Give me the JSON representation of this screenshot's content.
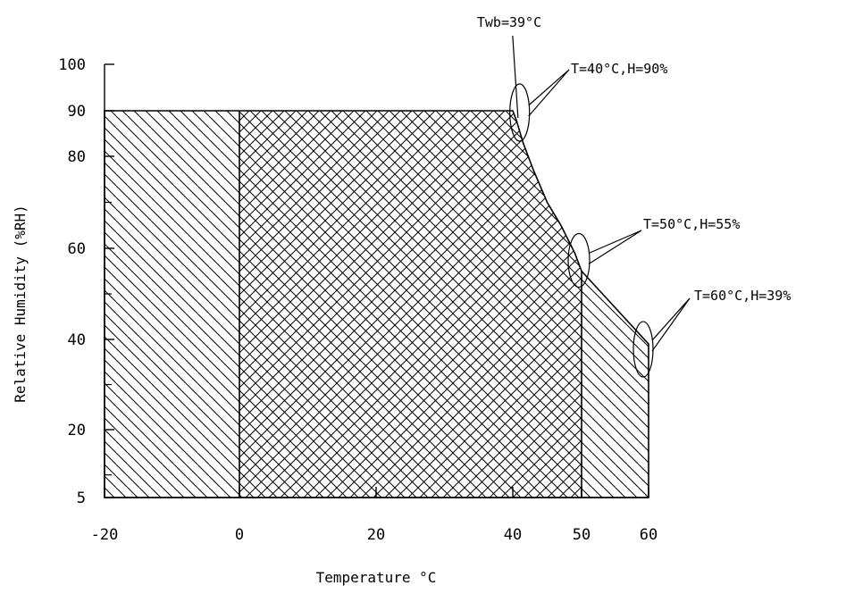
{
  "chart_data": {
    "type": "area",
    "xlabel": "Temperature °C",
    "ylabel": "Relative Humidity (%RH)",
    "xlim": [
      -20,
      60
    ],
    "ylim": [
      5,
      100
    ],
    "x_ticks": [
      -20,
      0,
      20,
      40,
      50,
      60
    ],
    "x_tick_labels": [
      "-20",
      "0",
      "20",
      "40",
      "50",
      "60"
    ],
    "y_ticks": [
      5,
      20,
      40,
      60,
      80,
      90,
      100
    ],
    "y_tick_labels": [
      "5",
      "20",
      "40",
      "60",
      "80",
      "90",
      "100"
    ],
    "y_minor_ticks": [
      10,
      30,
      50,
      70
    ],
    "boundary": [
      {
        "x": -20,
        "y": 5
      },
      {
        "x": -20,
        "y": 90
      },
      {
        "x": 40,
        "y": 90
      },
      {
        "x": 40.5,
        "y": 88
      },
      {
        "x": 41.5,
        "y": 83
      },
      {
        "x": 43,
        "y": 77
      },
      {
        "x": 45,
        "y": 70
      },
      {
        "x": 47,
        "y": 65
      },
      {
        "x": 49,
        "y": 59
      },
      {
        "x": 50,
        "y": 55
      },
      {
        "x": 60,
        "y": 39
      },
      {
        "x": 60,
        "y": 5
      }
    ],
    "regions": [
      {
        "pattern": "single-hatch",
        "x_range": [
          -20,
          0
        ]
      },
      {
        "pattern": "cross-hatch",
        "x_range": [
          0,
          50
        ]
      },
      {
        "pattern": "single-hatch",
        "x_range": [
          50,
          60
        ]
      }
    ],
    "annotations": [
      {
        "text": "Twb=39°C",
        "x": 40.5,
        "y": 90
      },
      {
        "text": "T=40°C,H=90%",
        "x": 41,
        "y": 90
      },
      {
        "text": "T=50°C,H=55%",
        "x": 50,
        "y": 55
      },
      {
        "text": "T=60°C,H=39%",
        "x": 60,
        "y": 39
      }
    ],
    "grid": false,
    "legend": "none"
  }
}
